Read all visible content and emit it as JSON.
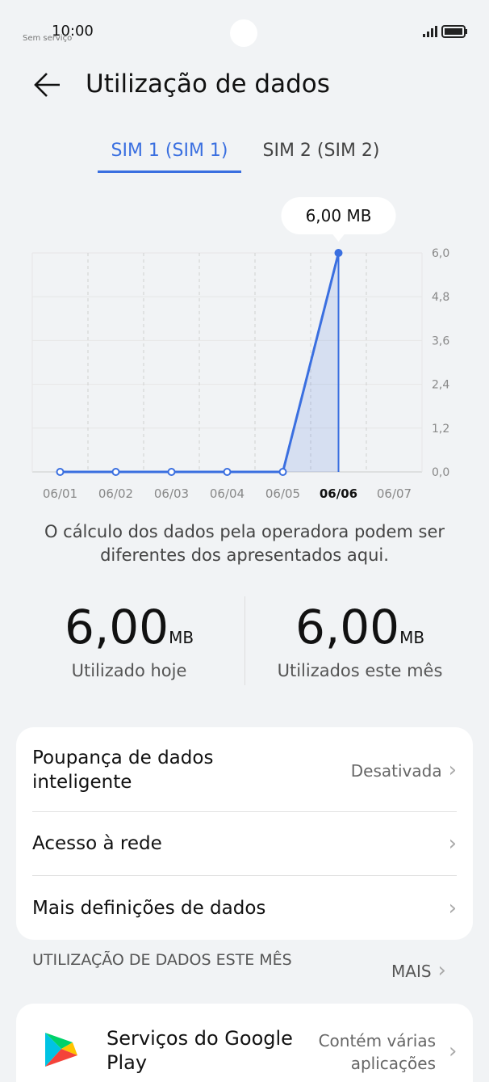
{
  "status_bar": {
    "time": "10:00",
    "carrier": "Sem serviço"
  },
  "header": {
    "title": "Utilização de dados"
  },
  "tabs": [
    "SIM 1 (SIM 1)",
    "SIM 2 (SIM 2)"
  ],
  "chart_data": {
    "type": "line",
    "categories": [
      "06/01",
      "06/02",
      "06/03",
      "06/04",
      "06/05",
      "06/06",
      "06/07"
    ],
    "values": [
      0,
      0,
      0,
      0,
      0,
      6,
      null
    ],
    "value_labels": [
      null,
      null,
      null,
      null,
      null,
      "6,00 MB",
      null
    ],
    "color": "#3a6fe0",
    "ylim": [
      0,
      6
    ],
    "yticks": [
      {
        "value": 0,
        "label": "0,0"
      },
      {
        "value": 1.2,
        "label": "1,2"
      },
      {
        "value": 2.4,
        "label": "2,4"
      },
      {
        "value": 3.6,
        "label": "3,6"
      },
      {
        "value": 4.8,
        "label": "4,8"
      },
      {
        "value": 6,
        "label": "6,0"
      }
    ],
    "grid": true
  },
  "note": "O cálculo dos dados pela operadora podem ser diferentes dos apresentados aqui.",
  "stats": [
    {
      "value": "6,00",
      "unit": "MB",
      "label": "Utilizado hoje"
    },
    {
      "value": "6,00",
      "unit": "MB",
      "label": "Utilizados este mês"
    }
  ],
  "settings": [
    {
      "label": "Poupança de dados inteligente",
      "status": "Desativada"
    },
    {
      "label": "Acesso à rede"
    },
    {
      "label": "Mais definições de dados"
    }
  ],
  "section": {
    "title": "UTILIZAÇÃO DE DADOS ESTE MÊS",
    "more": "MAIS"
  },
  "apps": [
    {
      "name": "Serviços do Google Play",
      "detail": "Contém várias aplicações"
    }
  ]
}
